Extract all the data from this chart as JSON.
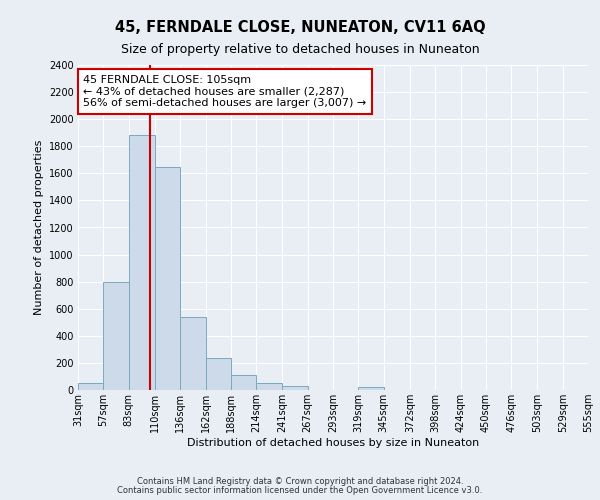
{
  "title": "45, FERNDALE CLOSE, NUNEATON, CV11 6AQ",
  "subtitle": "Size of property relative to detached houses in Nuneaton",
  "xlabel": "Distribution of detached houses by size in Nuneaton",
  "ylabel": "Number of detached properties",
  "bin_edges": [
    31,
    57,
    83,
    110,
    136,
    162,
    188,
    214,
    241,
    267,
    293,
    319,
    345,
    372,
    398,
    424,
    450,
    476,
    503,
    529,
    555
  ],
  "bar_heights": [
    50,
    800,
    1880,
    1650,
    540,
    235,
    110,
    50,
    30,
    0,
    0,
    20,
    0,
    0,
    0,
    0,
    0,
    0,
    0,
    0
  ],
  "bar_color": "#ccdaea",
  "bar_edge_color": "#7aaan0",
  "property_line_x": 105,
  "property_line_color": "#cc0000",
  "annotation_line1": "45 FERNDALE CLOSE: 105sqm",
  "annotation_line2": "← 43% of detached houses are smaller (2,287)",
  "annotation_line3": "56% of semi-detached houses are larger (3,007) →",
  "annotation_box_color": "#ffffff",
  "annotation_box_edge_color": "#cc0000",
  "ylim": [
    0,
    2400
  ],
  "yticks": [
    0,
    200,
    400,
    600,
    800,
    1000,
    1200,
    1400,
    1600,
    1800,
    2000,
    2200,
    2400
  ],
  "tick_labels": [
    "31sqm",
    "57sqm",
    "83sqm",
    "110sqm",
    "136sqm",
    "162sqm",
    "188sqm",
    "214sqm",
    "241sqm",
    "267sqm",
    "293sqm",
    "319sqm",
    "345sqm",
    "372sqm",
    "398sqm",
    "424sqm",
    "450sqm",
    "476sqm",
    "503sqm",
    "529sqm",
    "555sqm"
  ],
  "footer_line1": "Contains HM Land Registry data © Crown copyright and database right 2024.",
  "footer_line2": "Contains public sector information licensed under the Open Government Licence v3.0.",
  "background_color": "#e8eef4",
  "plot_bg_color": "#e8eef4",
  "grid_color": "#ffffff",
  "title_fontsize": 10.5,
  "subtitle_fontsize": 9,
  "axis_label_fontsize": 8,
  "tick_fontsize": 7,
  "annotation_fontsize": 8,
  "footer_fontsize": 6
}
